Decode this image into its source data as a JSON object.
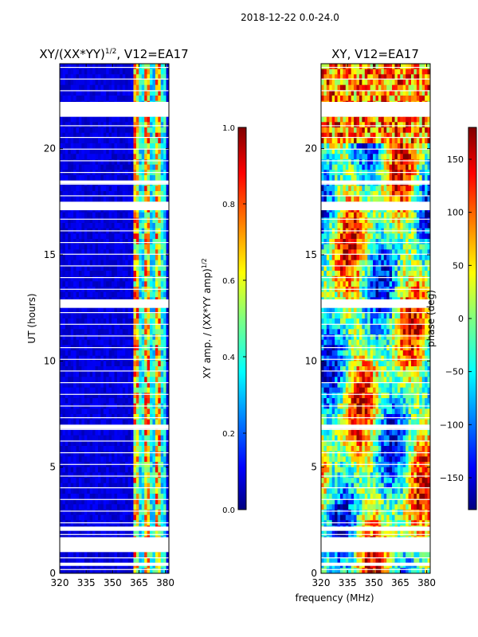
{
  "suptitle": "2018-12-22 0.0-24.0",
  "colors": {
    "jet_0": "#00007f",
    "jet_1": "#0000ff",
    "jet_2": "#007fff",
    "jet_3": "#00ffff",
    "jet_4": "#7fff7f",
    "jet_5": "#ffff00",
    "jet_6": "#ff7f00",
    "jet_7": "#ff0000",
    "jet_8": "#7f0000"
  },
  "chart_data": [
    {
      "type": "heatmap",
      "title": "XY/(XX*YY)",
      "title_sup": "1/2",
      "title_suffix": ", V12=EA17",
      "xlabel": "",
      "ylabel": "UT (hours)",
      "xlim": [
        320,
        382
      ],
      "ylim": [
        0,
        24
      ],
      "xticks": [
        320,
        335,
        350,
        365,
        380
      ],
      "yticks": [
        0,
        5,
        10,
        15,
        20
      ],
      "zlim": [
        0,
        1
      ],
      "colorbar_label": "XY amp. / (XX*YY amp)",
      "colorbar_label_sup": "1/2",
      "colorbar_ticks": [
        "0.0",
        "0.2",
        "0.4",
        "0.6",
        "0.8",
        "1.0"
      ],
      "bright_band_mhz": [
        362,
        380
      ],
      "data_gaps_hours": [
        [
          0.35,
          0.5
        ],
        [
          1.0,
          1.7
        ],
        [
          2.0,
          2.2
        ],
        [
          6.8,
          7.0
        ],
        [
          12.5,
          12.9
        ],
        [
          17.1,
          17.5
        ],
        [
          18.35,
          18.5
        ],
        [
          21.5,
          22.2
        ]
      ]
    },
    {
      "type": "heatmap",
      "title": "XY, V12=EA17",
      "xlabel": "frequency (MHz)",
      "ylabel": "",
      "xlim": [
        320,
        382
      ],
      "ylim": [
        0,
        24
      ],
      "xticks": [
        320,
        335,
        350,
        365,
        380
      ],
      "yticks": [
        0,
        5,
        10,
        15,
        20
      ],
      "zlim": [
        -180,
        180
      ],
      "colorbar_label": "phase (deg)",
      "colorbar_ticks": [
        "150",
        "100",
        "50",
        "0",
        "−50",
        "−100",
        "−150"
      ],
      "data_gaps_hours": [
        [
          0.35,
          0.5
        ],
        [
          1.0,
          1.7
        ],
        [
          2.0,
          2.2
        ],
        [
          6.8,
          7.0
        ],
        [
          12.5,
          12.9
        ],
        [
          17.1,
          17.5
        ],
        [
          18.35,
          18.5
        ],
        [
          21.5,
          22.2
        ]
      ]
    }
  ]
}
